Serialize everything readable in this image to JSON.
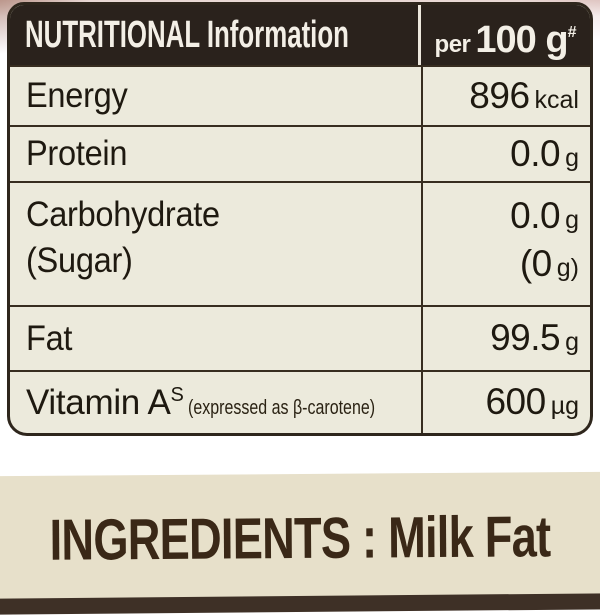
{
  "table": {
    "header": {
      "left": "NUTRITIONAL Information",
      "per": "per",
      "amount": "100 g",
      "footnote_mark": "#"
    },
    "rows": [
      {
        "label": "Energy",
        "value": "896",
        "unit": "kcal"
      },
      {
        "label": "Protein",
        "value": "0.0",
        "unit": "g"
      },
      {
        "label": "Carbohydrate",
        "sublabel": "(Sugar)",
        "value": "0.0",
        "unit": "g",
        "subvalue": "(0",
        "subunit": "g)"
      },
      {
        "label": "Fat",
        "value": "99.5",
        "unit": "g"
      },
      {
        "label": "Vitamin A",
        "footnote_mark": "S",
        "note": "(expressed as β-carotene)",
        "value": "600",
        "unit": "µg"
      }
    ]
  },
  "ingredients": {
    "label": "INGREDIENTS : Milk Fat"
  },
  "colors": {
    "header_bg": "#2a221c",
    "header_text": "#f3efe6",
    "cell_bg": "#eceadc",
    "grid_line": "#372d20",
    "body_text": "#1e1910",
    "ingredients_bg": "#e7e0ca",
    "ingredients_text": "#3a2817",
    "bottom_strip": "#3e3026"
  }
}
